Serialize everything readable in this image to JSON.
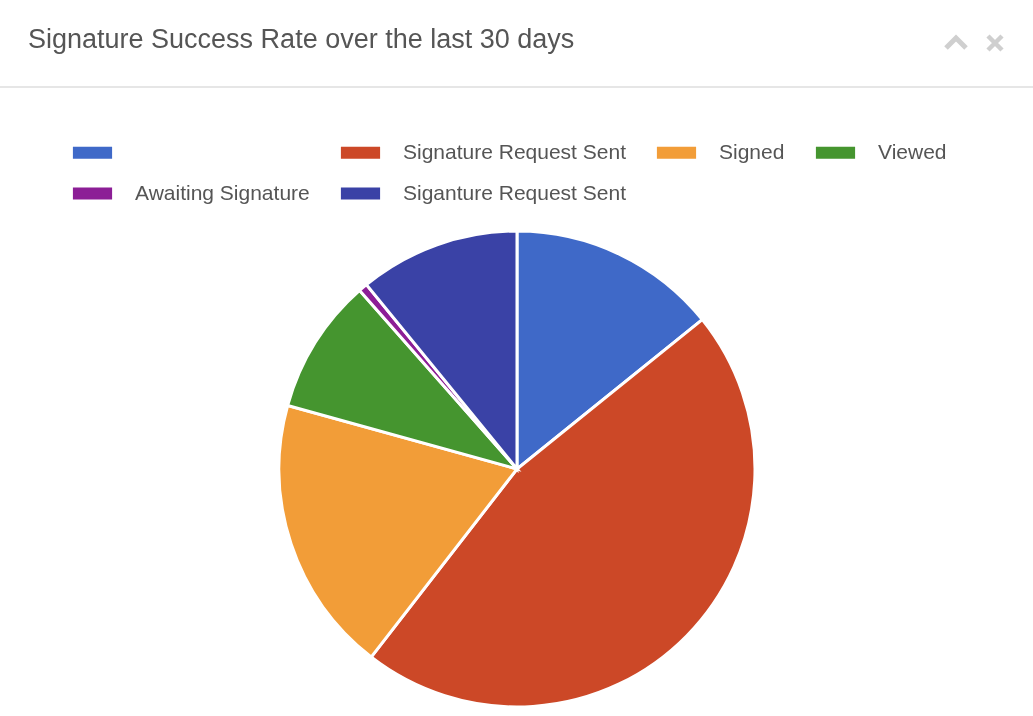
{
  "chart_data": {
    "type": "pie",
    "title": "Signature Success Rate over the last 30 days",
    "categories": [
      null,
      "Signature Request Sent",
      "Signed",
      "Viewed",
      "Awaiting Signature",
      "Siganture Request Sent"
    ],
    "values": [
      14.2,
      46.3,
      18.8,
      9.2,
      0.6,
      10.9
    ],
    "colors": [
      "#3f69c8",
      "#cc4827",
      "#f29d38",
      "#45952f",
      "#8c1e96",
      "#3a42a6"
    ],
    "legend": "top"
  }
}
